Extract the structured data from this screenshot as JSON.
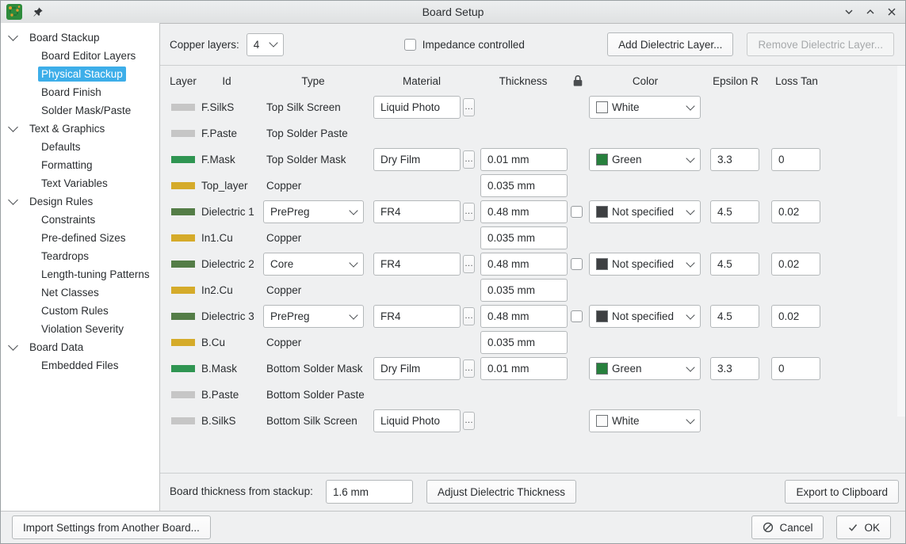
{
  "window": {
    "title": "Board Setup"
  },
  "sidebar": {
    "items": [
      {
        "label": "Board Stackup",
        "type": "group"
      },
      {
        "label": "Board Editor Layers",
        "type": "child"
      },
      {
        "label": "Physical Stackup",
        "type": "child",
        "selected": true
      },
      {
        "label": "Board Finish",
        "type": "child"
      },
      {
        "label": "Solder Mask/Paste",
        "type": "child"
      },
      {
        "label": "Text & Graphics",
        "type": "group"
      },
      {
        "label": "Defaults",
        "type": "child"
      },
      {
        "label": "Formatting",
        "type": "child"
      },
      {
        "label": "Text Variables",
        "type": "child"
      },
      {
        "label": "Design Rules",
        "type": "group"
      },
      {
        "label": "Constraints",
        "type": "child"
      },
      {
        "label": "Pre-defined Sizes",
        "type": "child"
      },
      {
        "label": "Teardrops",
        "type": "child"
      },
      {
        "label": "Length-tuning Patterns",
        "type": "child"
      },
      {
        "label": "Net Classes",
        "type": "child"
      },
      {
        "label": "Custom Rules",
        "type": "child"
      },
      {
        "label": "Violation Severity",
        "type": "child"
      },
      {
        "label": "Board Data",
        "type": "group"
      },
      {
        "label": "Embedded Files",
        "type": "child"
      }
    ]
  },
  "controls": {
    "copper_layers_label": "Copper layers:",
    "copper_layers_value": "4",
    "impedance_checkbox_label": "Impedance controlled",
    "impedance_checked": false,
    "add_dielectric_button": "Add Dielectric Layer...",
    "remove_dielectric_button": "Remove Dielectric Layer..."
  },
  "stackup_table": {
    "headers": {
      "layer": "Layer",
      "id": "Id",
      "type": "Type",
      "material": "Material",
      "thickness": "Thickness",
      "lock_icon": "lock-icon",
      "color": "Color",
      "epsilon": "Epsilon R",
      "loss_tan": "Loss Tan"
    },
    "rows": [
      {
        "id": "F.SilkS",
        "swatch": "#c6c6c6",
        "type": "Top Silk Screen",
        "type_editable": false,
        "material": "Liquid Photo",
        "thickness": null,
        "lock": false,
        "color": {
          "label": "White",
          "swatch": "#fbfbfb"
        },
        "epsilon": null,
        "loss_tan": null
      },
      {
        "id": "F.Paste",
        "swatch": "#c6c6c6",
        "type": "Top Solder Paste",
        "type_editable": false,
        "material": null,
        "thickness": null,
        "lock": false,
        "color": null,
        "epsilon": null,
        "loss_tan": null
      },
      {
        "id": "F.Mask",
        "swatch": "#2f9552",
        "type": "Top Solder Mask",
        "type_editable": false,
        "material": "Dry Film",
        "thickness": "0.01 mm",
        "lock": false,
        "color": {
          "label": "Green",
          "swatch": "#27803d"
        },
        "epsilon": "3.3",
        "loss_tan": "0"
      },
      {
        "id": "Top_layer",
        "swatch": "#d5ab2a",
        "type": "Copper",
        "type_editable": false,
        "material": null,
        "thickness": "0.035 mm",
        "lock": false,
        "color": null,
        "epsilon": null,
        "loss_tan": null
      },
      {
        "id": "Dielectric 1",
        "swatch": "#547d47",
        "type": "PrePreg",
        "type_editable": true,
        "material": "FR4",
        "thickness": "0.48 mm",
        "lock": true,
        "color": {
          "label": "Not specified",
          "swatch": "#3e4042"
        },
        "epsilon": "4.5",
        "loss_tan": "0.02"
      },
      {
        "id": "In1.Cu",
        "swatch": "#d5ab2a",
        "type": "Copper",
        "type_editable": false,
        "material": null,
        "thickness": "0.035 mm",
        "lock": false,
        "color": null,
        "epsilon": null,
        "loss_tan": null
      },
      {
        "id": "Dielectric 2",
        "swatch": "#547d47",
        "type": "Core",
        "type_editable": true,
        "material": "FR4",
        "thickness": "0.48 mm",
        "lock": true,
        "color": {
          "label": "Not specified",
          "swatch": "#3e4042"
        },
        "epsilon": "4.5",
        "loss_tan": "0.02"
      },
      {
        "id": "In2.Cu",
        "swatch": "#d5ab2a",
        "type": "Copper",
        "type_editable": false,
        "material": null,
        "thickness": "0.035 mm",
        "lock": false,
        "color": null,
        "epsilon": null,
        "loss_tan": null
      },
      {
        "id": "Dielectric 3",
        "swatch": "#547d47",
        "type": "PrePreg",
        "type_editable": true,
        "material": "FR4",
        "thickness": "0.48 mm",
        "lock": true,
        "color": {
          "label": "Not specified",
          "swatch": "#3e4042"
        },
        "epsilon": "4.5",
        "loss_tan": "0.02"
      },
      {
        "id": "B.Cu",
        "swatch": "#d5ab2a",
        "type": "Copper",
        "type_editable": false,
        "material": null,
        "thickness": "0.035 mm",
        "lock": false,
        "color": null,
        "epsilon": null,
        "loss_tan": null
      },
      {
        "id": "B.Mask",
        "swatch": "#2f9552",
        "type": "Bottom Solder Mask",
        "type_editable": false,
        "material": "Dry Film",
        "thickness": "0.01 mm",
        "lock": false,
        "color": {
          "label": "Green",
          "swatch": "#27803d"
        },
        "epsilon": "3.3",
        "loss_tan": "0"
      },
      {
        "id": "B.Paste",
        "swatch": "#c6c6c6",
        "type": "Bottom Solder Paste",
        "type_editable": false,
        "material": null,
        "thickness": null,
        "lock": false,
        "color": null,
        "epsilon": null,
        "loss_tan": null
      },
      {
        "id": "B.SilkS",
        "swatch": "#c6c6c6",
        "type": "Bottom Silk Screen",
        "type_editable": false,
        "material": "Liquid Photo",
        "thickness": null,
        "lock": false,
        "color": {
          "label": "White",
          "swatch": "#fbfbfb"
        },
        "epsilon": null,
        "loss_tan": null
      }
    ]
  },
  "footer": {
    "board_thickness_label": "Board thickness from stackup:",
    "board_thickness_value": "1.6 mm",
    "adjust_button": "Adjust Dielectric Thickness",
    "export_button": "Export to Clipboard"
  },
  "actions": {
    "import_button": "Import Settings from Another Board...",
    "cancel_button": "Cancel",
    "ok_button": "OK"
  },
  "colors": {
    "selection_blue": "#3daee9",
    "silk_swatch": "#c6c6c6",
    "mask_swatch": "#2f9552",
    "copper_swatch": "#d5ab2a",
    "dielectric_swatch": "#547d47",
    "green_option": "#27803d",
    "white_option": "#fbfbfb",
    "not_specified_option": "#3e4042"
  }
}
